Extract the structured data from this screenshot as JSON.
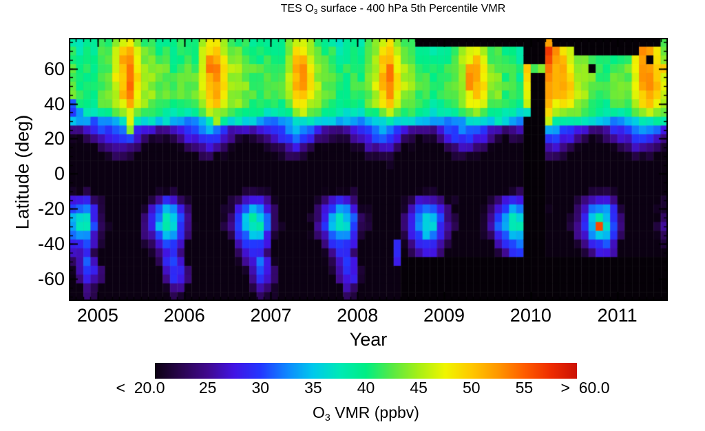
{
  "title": {
    "text_prefix": "TES O",
    "subscript": "3",
    "text_suffix": " surface - 400 hPa 5th Percentile VMR"
  },
  "x_axis": {
    "label": "Year",
    "ticks": [
      {
        "value": 2005,
        "label": "2005"
      },
      {
        "value": 2006,
        "label": "2006"
      },
      {
        "value": 2007,
        "label": "2007"
      },
      {
        "value": 2008,
        "label": "2008"
      },
      {
        "value": 2009,
        "label": "2009"
      },
      {
        "value": 2010,
        "label": "2010"
      },
      {
        "value": 2011,
        "label": "2011"
      }
    ]
  },
  "y_axis": {
    "label": "Latitude (deg)",
    "ticks": [
      {
        "value": 60,
        "label": "60"
      },
      {
        "value": 40,
        "label": "40"
      },
      {
        "value": 20,
        "label": "20"
      },
      {
        "value": 0,
        "label": "0"
      },
      {
        "value": -20,
        "label": "-20"
      },
      {
        "value": -40,
        "label": "-40"
      },
      {
        "value": -60,
        "label": "-60"
      }
    ]
  },
  "colorbar": {
    "caption_prefix": "O",
    "caption_sub": "3",
    "caption_suffix": " VMR (ppbv)",
    "min": 20,
    "max": 60,
    "ticks": [
      {
        "value": 20,
        "label": "<  20.0"
      },
      {
        "value": 25,
        "label": "25"
      },
      {
        "value": 30,
        "label": "30"
      },
      {
        "value": 35,
        "label": "35"
      },
      {
        "value": 40,
        "label": "40"
      },
      {
        "value": 45,
        "label": "45"
      },
      {
        "value": 50,
        "label": "50"
      },
      {
        "value": 55,
        "label": "55"
      },
      {
        "value": 60,
        "label": ">  60.0"
      }
    ]
  },
  "chart_data": {
    "type": "heatmap",
    "title": "TES O3 surface - 400 hPa 5th Percentile VMR",
    "xlabel": "Year",
    "ylabel": "Latitude (deg)",
    "value_label": "O3 VMR (ppbv)",
    "x_range": [
      2004.6667,
      2011.5833
    ],
    "y_range": [
      -72.5,
      77.5
    ],
    "lat_bin_deg": 5,
    "time": {
      "start_year": 2004,
      "start_month": 9,
      "n_months": 83
    },
    "lat_centers": [
      75,
      70,
      65,
      60,
      55,
      50,
      45,
      40,
      35,
      30,
      25,
      20,
      15,
      10,
      5,
      0,
      -5,
      -10,
      -15,
      -20,
      -25,
      -30,
      -35,
      -40,
      -45,
      -50,
      -55,
      -60,
      -65,
      -70
    ],
    "value_range": [
      20,
      60
    ],
    "colormap_stops": [
      [
        20,
        "#0b0012"
      ],
      [
        22.5,
        "#2a0550"
      ],
      [
        25,
        "#40098e"
      ],
      [
        27.5,
        "#4114e4"
      ],
      [
        30,
        "#2336ff"
      ],
      [
        32.5,
        "#0e87ff"
      ],
      [
        35,
        "#00c9ec"
      ],
      [
        37.5,
        "#00e9b6"
      ],
      [
        40,
        "#00ee84"
      ],
      [
        42.5,
        "#58e943"
      ],
      [
        45,
        "#a7ef16"
      ],
      [
        47.5,
        "#f0f500"
      ],
      [
        50,
        "#ffc800"
      ],
      [
        52.5,
        "#ff9700"
      ],
      [
        55,
        "#ff5d00"
      ],
      [
        57.5,
        "#ee2c00"
      ],
      [
        60,
        "#cb1104"
      ]
    ],
    "missing_color": "#050007",
    "climatology": [
      [
        39,
        40,
        43,
        46,
        47,
        44,
        41,
        40,
        39,
        38,
        38,
        39
      ],
      [
        40,
        41,
        44,
        48,
        49,
        45,
        42,
        41,
        40,
        39,
        39,
        39
      ],
      [
        40,
        41,
        45,
        49,
        51,
        46,
        43,
        42,
        41,
        40,
        39,
        40
      ],
      [
        41,
        42,
        45,
        50,
        52,
        47,
        44,
        43,
        42,
        41,
        40,
        40
      ],
      [
        41,
        42,
        46,
        50,
        52,
        48,
        44,
        43,
        42,
        41,
        40,
        41
      ],
      [
        41,
        43,
        46,
        50,
        52,
        48,
        45,
        43,
        42,
        41,
        40,
        41
      ],
      [
        41,
        42,
        45,
        49,
        51,
        47,
        44,
        43,
        42,
        41,
        40,
        41
      ],
      [
        40,
        41,
        44,
        47,
        49,
        46,
        43,
        42,
        41,
        40,
        39,
        40
      ],
      [
        37,
        38,
        41,
        44,
        45,
        43,
        41,
        40,
        39,
        38,
        37,
        37
      ],
      [
        31,
        32,
        34,
        36,
        37,
        37,
        36,
        36,
        35,
        34,
        33,
        32
      ],
      [
        29,
        30,
        32,
        33,
        32,
        30,
        27,
        26,
        25,
        25,
        26,
        28
      ],
      [
        26,
        28,
        30,
        30,
        29,
        27,
        24,
        22,
        21,
        21,
        22,
        24
      ],
      [
        22,
        24,
        26,
        26,
        25,
        23,
        20,
        19,
        18,
        18,
        19,
        20
      ],
      [
        19,
        20,
        22,
        22,
        21,
        20,
        18,
        17,
        17,
        17,
        17,
        18
      ],
      [
        18,
        18,
        19,
        19,
        19,
        18,
        17,
        16,
        16,
        16,
        17,
        17
      ],
      [
        17,
        17,
        18,
        18,
        18,
        17,
        17,
        16,
        16,
        17,
        17,
        17
      ],
      [
        17,
        17,
        17,
        17,
        17,
        17,
        17,
        17,
        17,
        18,
        18,
        17
      ],
      [
        18,
        17,
        17,
        17,
        17,
        17,
        18,
        19,
        20,
        21,
        21,
        20
      ],
      [
        20,
        18,
        17,
        17,
        17,
        18,
        20,
        23,
        26,
        28,
        27,
        24
      ],
      [
        22,
        19,
        18,
        17,
        18,
        19,
        22,
        26,
        30,
        33,
        32,
        28
      ],
      [
        23,
        20,
        18,
        18,
        18,
        20,
        24,
        28,
        33,
        37,
        35,
        30
      ],
      [
        23,
        20,
        18,
        18,
        18,
        20,
        25,
        29,
        34,
        37,
        36,
        30
      ],
      [
        22,
        19,
        17,
        17,
        17,
        19,
        23,
        27,
        31,
        34,
        33,
        28
      ],
      [
        20,
        18,
        16,
        16,
        16,
        17,
        20,
        24,
        28,
        30,
        30,
        26
      ],
      [
        19,
        17,
        16,
        16,
        16,
        16,
        18,
        21,
        25,
        28,
        28,
        24
      ],
      [
        19,
        16,
        16,
        16,
        16,
        16,
        17,
        19,
        23,
        27,
        30,
        27
      ],
      [
        23,
        18,
        16,
        15,
        15,
        16,
        16,
        17,
        21,
        26,
        30,
        28
      ],
      [
        22,
        17,
        15,
        15,
        15,
        15,
        16,
        17,
        19,
        24,
        28,
        27
      ],
      [
        20,
        16,
        15,
        15,
        15,
        15,
        15,
        16,
        18,
        21,
        25,
        24
      ],
      [
        19,
        16,
        15,
        15,
        15,
        15,
        15,
        16,
        17,
        19,
        23,
        22
      ]
    ],
    "year_offsets": {
      "years": [
        2004,
        2005,
        2006,
        2007,
        2008,
        2009,
        2010,
        2011
      ],
      "north": [
        0,
        1,
        1,
        0,
        0.5,
        0,
        1,
        1.5
      ],
      "south": [
        0,
        0,
        0.5,
        0,
        0,
        1,
        0.5,
        0
      ]
    },
    "noise_amplitude": 1.3,
    "column_noise_amplitude": 0.7,
    "anomalies": [
      {
        "y": 2004,
        "m": 9,
        "lat": 35,
        "v": 30
      },
      {
        "y": 2004,
        "m": 9,
        "lat": 40,
        "v": 31
      },
      {
        "y": 2004,
        "m": 10,
        "lat": 35,
        "v": 33
      },
      {
        "y": 2005,
        "m": 4,
        "lat": 65,
        "v": 52
      },
      {
        "y": 2005,
        "m": 5,
        "lat": 60,
        "v": 54
      },
      {
        "y": 2005,
        "m": 5,
        "lat": 55,
        "v": 54
      },
      {
        "y": 2005,
        "m": 5,
        "lat": 30,
        "v": 47
      },
      {
        "y": 2005,
        "m": 5,
        "lat": 25,
        "v": 44
      },
      {
        "y": 2006,
        "m": 4,
        "lat": 65,
        "v": 53
      },
      {
        "y": 2006,
        "m": 4,
        "lat": 60,
        "v": 54
      },
      {
        "y": 2006,
        "m": 5,
        "lat": 55,
        "v": 53
      },
      {
        "y": 2006,
        "m": 5,
        "lat": 30,
        "v": 45
      },
      {
        "y": 2007,
        "m": 5,
        "lat": 60,
        "v": 53
      },
      {
        "y": 2008,
        "m": 5,
        "lat": 45,
        "v": 53
      },
      {
        "y": 2008,
        "m": 5,
        "lat": 50,
        "v": 53
      },
      {
        "y": 2008,
        "m": 6,
        "lat": -40,
        "v": 29
      },
      {
        "y": 2008,
        "m": 6,
        "lat": -45,
        "v": 29
      },
      {
        "y": 2008,
        "m": 6,
        "lat": -50,
        "v": 28
      },
      {
        "y": 2009,
        "m": 4,
        "lat": 55,
        "v": 53
      },
      {
        "y": 2009,
        "m": 4,
        "lat": 50,
        "v": 53
      },
      {
        "y": 2009,
        "m": 4,
        "lat": 60,
        "v": 52
      },
      {
        "y": 2009,
        "m": 12,
        "lat": 60,
        "v": 50
      },
      {
        "y": 2009,
        "m": 12,
        "lat": 55,
        "v": 49
      },
      {
        "y": 2009,
        "m": 12,
        "lat": 50,
        "v": 48
      },
      {
        "y": 2009,
        "m": 12,
        "lat": 45,
        "v": 47
      },
      {
        "y": 2009,
        "m": 12,
        "lat": 40,
        "v": 46
      },
      {
        "y": 2010,
        "m": 3,
        "lat": 75,
        "v": 52
      },
      {
        "y": 2010,
        "m": 3,
        "lat": 70,
        "v": 57
      },
      {
        "y": 2010,
        "m": 3,
        "lat": 65,
        "v": 56
      },
      {
        "y": 2010,
        "m": 3,
        "lat": 60,
        "v": 54
      },
      {
        "y": 2010,
        "m": 3,
        "lat": 55,
        "v": 53
      },
      {
        "y": 2010,
        "m": 3,
        "lat": 50,
        "v": 52
      },
      {
        "y": 2010,
        "m": 3,
        "lat": 45,
        "v": 52
      },
      {
        "y": 2010,
        "m": 3,
        "lat": 40,
        "v": 51
      },
      {
        "y": 2010,
        "m": 3,
        "lat": 35,
        "v": 49
      },
      {
        "y": 2010,
        "m": 3,
        "lat": 30,
        "v": 46
      },
      {
        "y": 2010,
        "m": 4,
        "lat": 70,
        "v": 53
      },
      {
        "y": 2010,
        "m": 4,
        "lat": 65,
        "v": 52
      },
      {
        "y": 2010,
        "m": 4,
        "lat": 60,
        "v": 51
      },
      {
        "y": 2010,
        "m": 9,
        "lat": 60,
        "v": null
      },
      {
        "y": 2010,
        "m": 10,
        "lat": -30,
        "v": 56
      },
      {
        "y": 2011,
        "m": 4,
        "lat": 70,
        "v": 53
      },
      {
        "y": 2011,
        "m": 4,
        "lat": 65,
        "v": 52
      },
      {
        "y": 2011,
        "m": 5,
        "lat": 70,
        "v": 52
      },
      {
        "y": 2011,
        "m": 5,
        "lat": 65,
        "v": null
      },
      {
        "y": 2011,
        "m": 7,
        "lat": 75,
        "v": 42
      },
      {
        "y": 2011,
        "m": 7,
        "lat": 70,
        "v": 43
      },
      {
        "y": 2011,
        "m": 7,
        "lat": 60,
        "v": 50
      }
    ],
    "missing_rects": [
      {
        "t0": 2008.68,
        "t1": 2011.5,
        "lat0": 72.5,
        "lat1": 77.5
      },
      {
        "t0": 2010.5,
        "t1": 2011.27,
        "lat0": 67.5,
        "lat1": 72.5
      },
      {
        "t0": 2009.93,
        "t1": 2010.18,
        "lat0": -77,
        "lat1": 32.5
      },
      {
        "t0": 2010.0,
        "t1": 2010.18,
        "lat0": 32.5,
        "lat1": 60
      },
      {
        "t0": 2009.93,
        "t1": 2010.18,
        "lat0": 60,
        "lat1": 78
      },
      {
        "t0": 2008.5,
        "t1": 2011.6,
        "lat0": -77,
        "lat1": -45
      },
      {
        "t0": 2008.55,
        "t1": 2011.6,
        "lat0": -45,
        "lat1": -40
      },
      {
        "t0": 2009.93,
        "t1": 2011.6,
        "lat0": -40,
        "lat1": -35
      }
    ]
  }
}
